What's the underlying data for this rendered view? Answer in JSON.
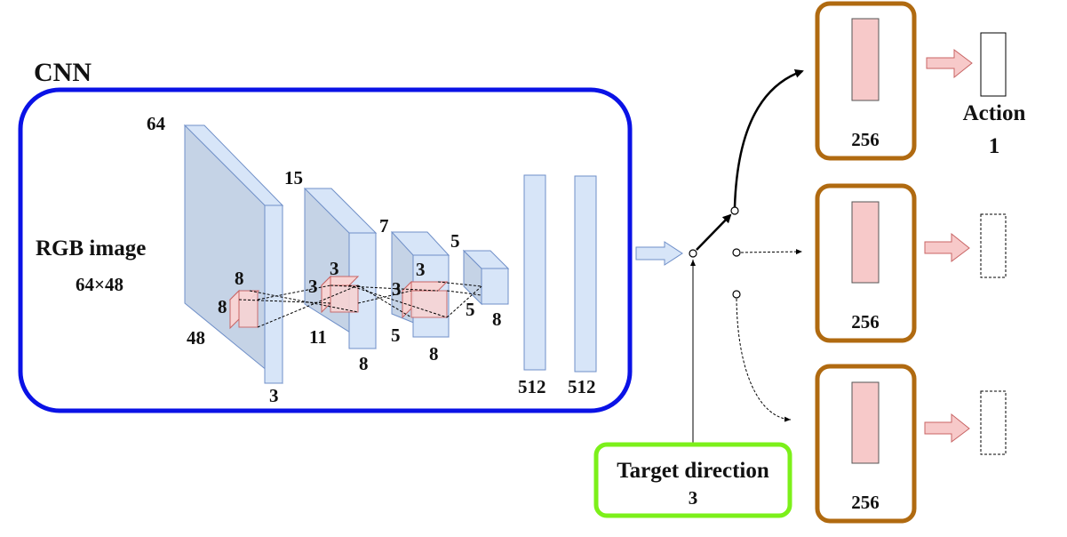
{
  "cnn": {
    "title": "CNN",
    "input_label": "RGB image",
    "input_size": "64×48",
    "border_color": "#0a12e6"
  },
  "layers": {
    "l1": {
      "h": "64",
      "w": "48",
      "d": "3"
    },
    "k1": {
      "a": "8",
      "b": "8"
    },
    "l2": {
      "h": "15",
      "w": "11",
      "d": "8"
    },
    "k2": {
      "a": "3",
      "b": "3"
    },
    "l3": {
      "h": "7",
      "w": "5",
      "d": "8"
    },
    "k3": {
      "a": "3",
      "b": "3"
    },
    "l4": {
      "h": "5",
      "w": "5",
      "d": "8"
    },
    "fc1": "512",
    "fc2": "512"
  },
  "target": {
    "label": "Target direction",
    "size": "3",
    "border_color": "#7cf01a"
  },
  "heads": {
    "border_color": "#b06a10",
    "items": [
      {
        "size": "256",
        "output_label": "Action",
        "output_value": "1"
      },
      {
        "size": "256"
      },
      {
        "size": "256"
      }
    ]
  },
  "colors": {
    "layer_fill": "#d7e5f8",
    "layer_stroke": "#6f8fc8",
    "kernel_fill": "#f7d4d4",
    "kernel_stroke": "#c86464"
  }
}
